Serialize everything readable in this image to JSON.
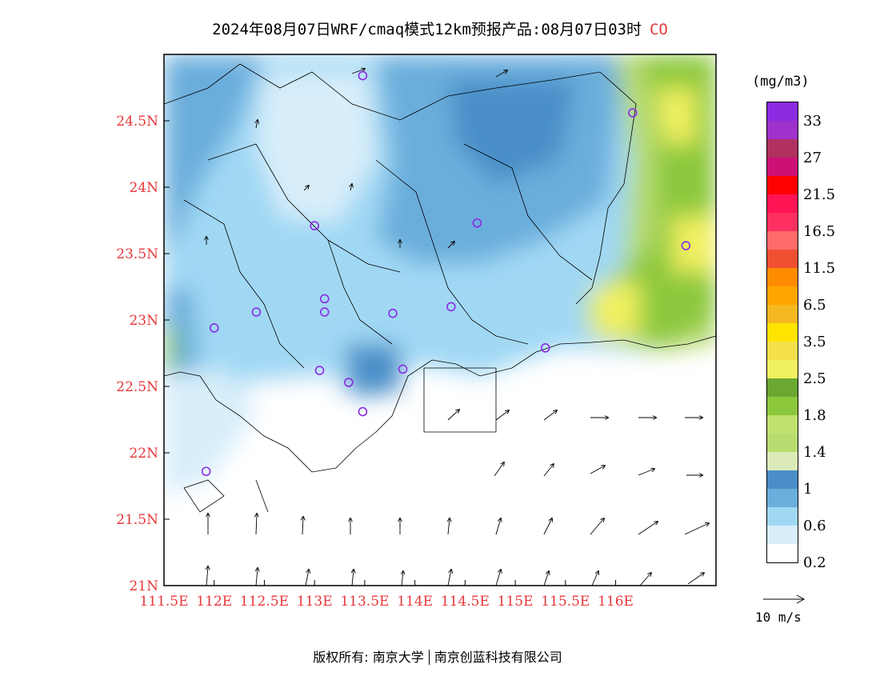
{
  "header": {
    "title": "2024年08月07日WRF/cmaq模式12km预报产品:08月07日03时",
    "variable": "CO"
  },
  "map": {
    "lat_labels": [
      "21N",
      "21.5N",
      "22N",
      "22.5N",
      "23N",
      "23.5N",
      "24N",
      "24.5N"
    ],
    "lon_labels": [
      "111.5E",
      "112E",
      "112.5E",
      "113E",
      "113.5E",
      "114E",
      "114.5E",
      "115E",
      "115.5E",
      "116E"
    ],
    "stations": [
      {
        "lon": 113.48,
        "lat": 24.84
      },
      {
        "lon": 113.0,
        "lat": 23.71
      },
      {
        "lon": 114.62,
        "lat": 23.73
      },
      {
        "lon": 112.0,
        "lat": 22.94
      },
      {
        "lon": 112.42,
        "lat": 23.06
      },
      {
        "lon": 113.1,
        "lat": 23.16
      },
      {
        "lon": 113.1,
        "lat": 23.06
      },
      {
        "lon": 113.78,
        "lat": 23.05
      },
      {
        "lon": 114.36,
        "lat": 23.1
      },
      {
        "lon": 113.05,
        "lat": 22.62
      },
      {
        "lon": 113.34,
        "lat": 22.53
      },
      {
        "lon": 113.48,
        "lat": 22.31
      },
      {
        "lon": 113.88,
        "lat": 22.63
      },
      {
        "lon": 115.3,
        "lat": 22.79
      },
      {
        "lon": 111.92,
        "lat": 21.86
      },
      {
        "lon": 116.17,
        "lat": 24.56
      },
      {
        "lon": 116.7,
        "lat": 23.56
      }
    ]
  },
  "colorbar": {
    "unit": "(mg/m3)",
    "colors": [
      "#8b2be2",
      "#9f32cd",
      "#b03060",
      "#cd1076",
      "#ff0000",
      "#ff1454",
      "#ff3060",
      "#ff6a6a",
      "#f05032",
      "#ff8c00",
      "#ffa500",
      "#f5b820",
      "#ffe400",
      "#f4e04a",
      "#f0f060",
      "#6aa832",
      "#8cc83c",
      "#c0e070",
      "#b8dc70",
      "#dceab8",
      "#4a8ec8",
      "#6aaedc",
      "#a0d8f4",
      "#d8eefa",
      "#ffffff"
    ],
    "labels": [
      "33",
      "27",
      "21.5",
      "16.5",
      "11.5",
      "6.5",
      "3.5",
      "2.5",
      "1.8",
      "1.4",
      "1",
      "0.6",
      "0.2"
    ]
  },
  "wind_reference": "10 m/s",
  "footer": {
    "left": "版权所有: 南京大学",
    "right": "南京创蓝科技有限公司"
  }
}
